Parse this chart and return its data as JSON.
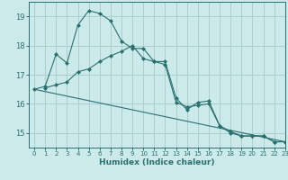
{
  "xlabel": "Humidex (Indice chaleur)",
  "xlim": [
    -0.5,
    23
  ],
  "ylim": [
    14.5,
    19.5
  ],
  "yticks": [
    15,
    16,
    17,
    18,
    19
  ],
  "xticks": [
    0,
    1,
    2,
    3,
    4,
    5,
    6,
    7,
    8,
    9,
    10,
    11,
    12,
    13,
    14,
    15,
    16,
    17,
    18,
    19,
    20,
    21,
    22,
    23
  ],
  "bg_color": "#cceaea",
  "grid_color": "#aacece",
  "line_color": "#2a7070",
  "line1_x": [
    0,
    1,
    2,
    3,
    4,
    5,
    6,
    7,
    8,
    9,
    10,
    11,
    12,
    13,
    14,
    15,
    16,
    17,
    18,
    19,
    20,
    21,
    22,
    23
  ],
  "line1_y": [
    16.5,
    16.6,
    17.7,
    17.4,
    18.7,
    19.2,
    19.1,
    18.85,
    18.15,
    17.9,
    17.9,
    17.45,
    17.45,
    16.2,
    15.8,
    16.05,
    16.1,
    15.25,
    15.05,
    14.9,
    14.9,
    14.9,
    14.7,
    14.7
  ],
  "line2_x": [
    0,
    1,
    2,
    3,
    4,
    5,
    6,
    7,
    8,
    9,
    10,
    11,
    12,
    13,
    14,
    15,
    16,
    17,
    18,
    19,
    20,
    21,
    22,
    23
  ],
  "line2_y": [
    16.5,
    16.55,
    16.65,
    16.75,
    17.1,
    17.2,
    17.45,
    17.65,
    17.8,
    18.0,
    17.55,
    17.45,
    17.35,
    16.05,
    15.9,
    15.95,
    16.0,
    15.25,
    15.0,
    14.9,
    14.9,
    14.9,
    14.7,
    14.7
  ],
  "line3_x": [
    0,
    23
  ],
  "line3_y": [
    16.5,
    14.7
  ],
  "marker_size": 2.0,
  "line_width": 0.8
}
